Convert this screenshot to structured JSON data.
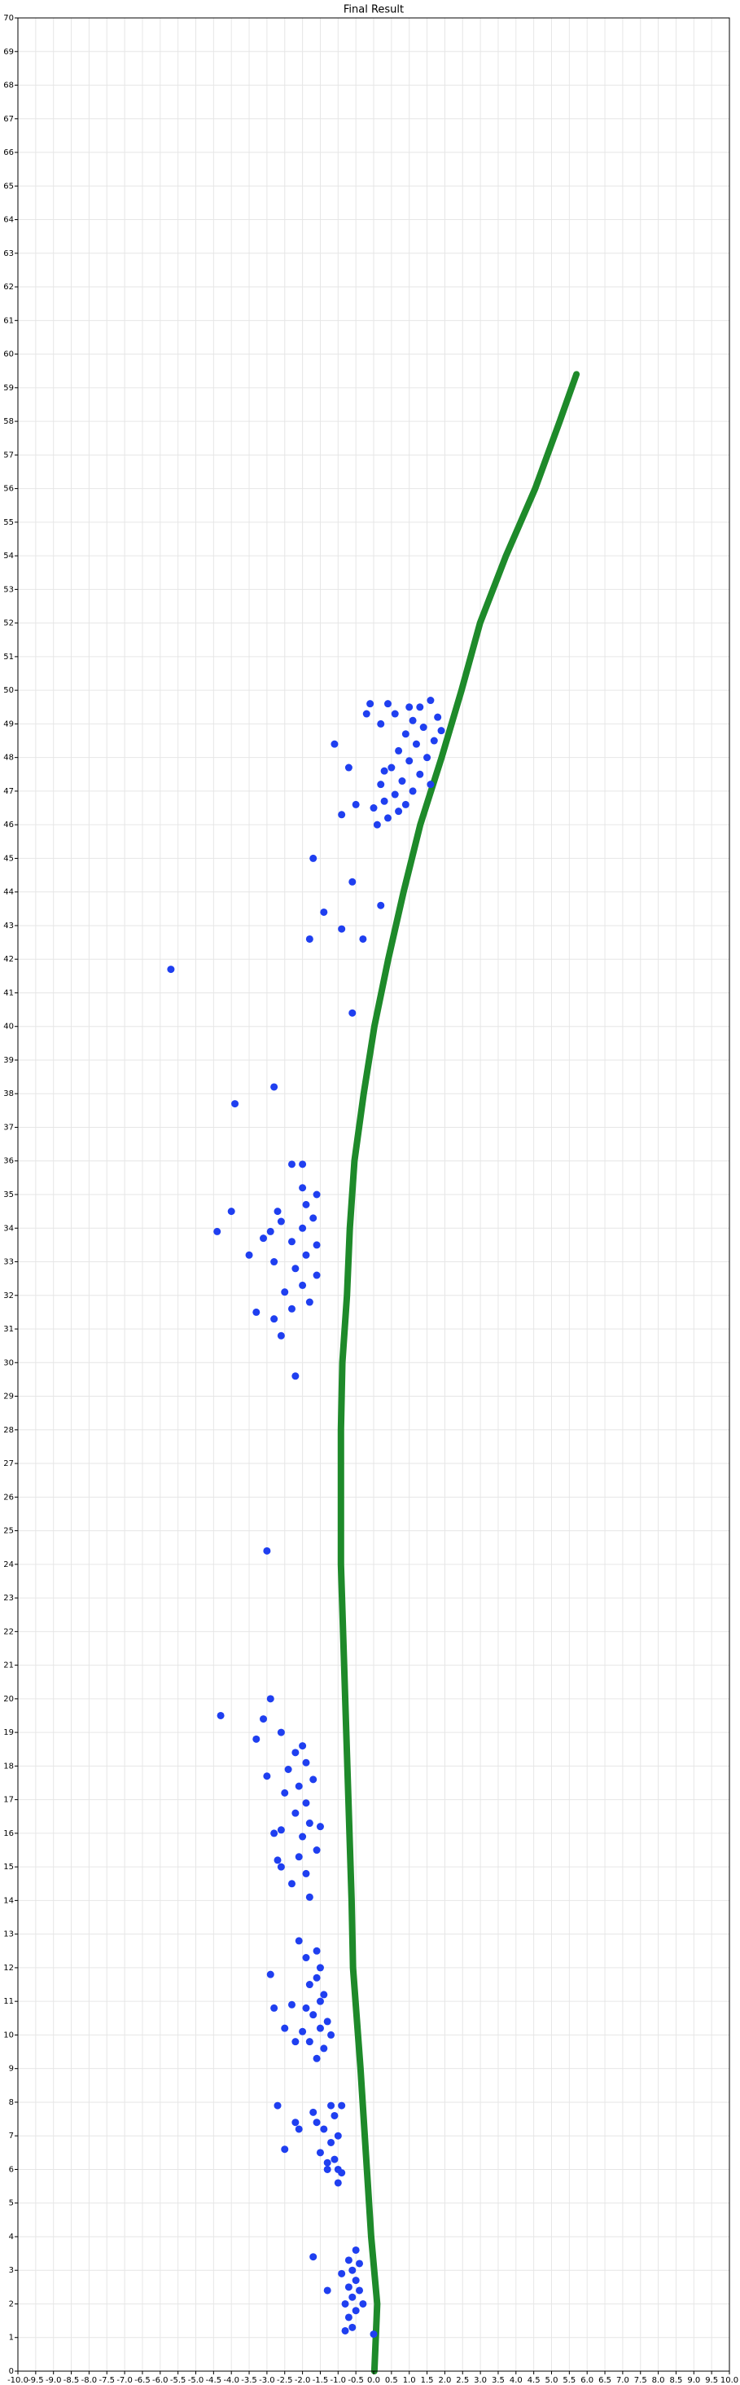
{
  "chart_data": {
    "type": "scatter",
    "title": "Final Result",
    "xlim": [
      -10,
      10
    ],
    "ylim": [
      0,
      70
    ],
    "grid": true,
    "xticks": [
      {
        "value": -10,
        "label": "-10.0"
      },
      -9.5,
      {
        "value": -9,
        "label": "-9.0"
      },
      -8.5,
      {
        "value": -8,
        "label": "-8.0"
      },
      -7.5,
      {
        "value": -7,
        "label": "-7.0"
      },
      -6.5,
      {
        "value": -6,
        "label": "-6.0"
      },
      -5.5,
      {
        "value": -5,
        "label": "-5.0"
      },
      -4.5,
      {
        "value": -4,
        "label": "-4.0"
      },
      -3.5,
      {
        "value": -3,
        "label": "-3.0"
      },
      -2.5,
      {
        "value": -2,
        "label": "-2.0"
      },
      -1.5,
      {
        "value": -1,
        "label": "-1.0"
      },
      -0.5,
      {
        "value": 0,
        "label": "0.0"
      },
      0.5,
      {
        "value": 1,
        "label": "1.0"
      },
      1.5,
      {
        "value": 2,
        "label": "2.0"
      },
      2.5,
      {
        "value": 3,
        "label": "3.0"
      },
      3.5,
      {
        "value": 4,
        "label": "4.0"
      },
      4.5,
      {
        "value": 5,
        "label": "5.0"
      },
      5.5,
      {
        "value": 6,
        "label": "6.0"
      },
      6.5,
      {
        "value": 7,
        "label": "7.0"
      },
      7.5,
      {
        "value": 8,
        "label": "8.0"
      },
      8.5,
      {
        "value": 9,
        "label": "9.0"
      },
      9.5,
      {
        "value": 10,
        "label": "10.0"
      }
    ],
    "yticks": [
      0,
      1,
      2,
      3,
      4,
      5,
      6,
      7,
      8,
      9,
      10,
      11,
      12,
      13,
      14,
      15,
      16,
      17,
      18,
      19,
      20,
      21,
      22,
      23,
      24,
      25,
      26,
      27,
      28,
      29,
      30,
      31,
      32,
      33,
      34,
      35,
      36,
      37,
      38,
      39,
      40,
      41,
      42,
      43,
      44,
      45,
      46,
      47,
      48,
      49,
      50,
      51,
      52,
      53,
      54,
      55,
      56,
      57,
      58,
      59,
      60,
      61,
      62,
      63,
      64,
      65,
      66,
      67,
      68,
      69,
      70
    ],
    "series": [
      {
        "style": "line",
        "color": "#1e8a2a",
        "x": [
          0.02,
          0.1,
          -0.07,
          -0.19,
          -0.37,
          -0.58,
          -0.62,
          -0.71,
          -0.8,
          -0.92,
          -0.92,
          -0.88,
          -0.75,
          -0.67,
          -0.54,
          -0.28,
          0.02,
          0.41,
          0.84,
          1.31,
          1.91,
          2.47,
          2.99,
          3.72,
          4.54,
          5.23,
          5.7
        ],
        "y": [
          0,
          2,
          4,
          6,
          9,
          12,
          14,
          17,
          20,
          24,
          28,
          30,
          32,
          34,
          36,
          38,
          40,
          42,
          44,
          46,
          48,
          50,
          52,
          54,
          56,
          58,
          59.4
        ]
      },
      {
        "style": "points",
        "color": "#1f3ff0",
        "x": [
          -0.8,
          -0.6,
          -0.7,
          -0.5,
          -0.8,
          -0.6,
          -0.4,
          -0.7,
          -0.5,
          -0.9,
          -0.6,
          -0.4,
          -0.7,
          -1.7,
          -0.5,
          -1.3,
          -0.3,
          0.0,
          -1.0,
          -0.9,
          -1.3,
          -1.1,
          -1.5,
          -1.2,
          -1.0,
          -1.4,
          -1.6,
          -1.1,
          -0.9,
          -1.2,
          -1.7,
          -1.3,
          -2.5,
          -2.7,
          -2.1,
          -2.2,
          -1.0,
          -1.6,
          -1.4,
          -1.8,
          -2.0,
          -1.5,
          -1.3,
          -1.7,
          -1.9,
          -1.5,
          -1.4,
          -1.8,
          -1.6,
          -1.5,
          -1.9,
          -1.6,
          -2.1,
          -2.5,
          -2.3,
          -2.9,
          -2.8,
          -1.2,
          -2.2,
          -1.8,
          -2.3,
          -1.9,
          -2.6,
          -2.1,
          -1.6,
          -2.0,
          -2.6,
          -1.8,
          -2.2,
          -1.9,
          -2.5,
          -2.1,
          -1.7,
          -2.4,
          -1.9,
          -2.2,
          -2.0,
          -2.6,
          -3.3,
          -3.0,
          -2.9,
          -3.1,
          -4.3,
          -2.8,
          -2.7,
          -1.5,
          -3.0,
          -2.2,
          -2.6,
          -2.8,
          -3.3,
          -2.3,
          -1.8,
          -2.5,
          -2.0,
          -1.6,
          -2.2,
          -2.8,
          -1.9,
          -3.5,
          -1.6,
          -2.3,
          -3.1,
          -4.4,
          -2.0,
          -1.7,
          -2.6,
          -4.0,
          -1.9,
          -1.6,
          -2.0,
          -2.3,
          -2.0,
          -2.7,
          -2.9,
          -3.9,
          -2.8,
          -0.6,
          -5.7,
          -1.8,
          -0.3,
          -0.9,
          -1.4,
          0.2,
          -0.6,
          -1.7,
          -1.1,
          -0.7,
          -0.9,
          -0.5,
          0.1,
          0.4,
          0.7,
          0.0,
          0.3,
          0.9,
          0.6,
          1.1,
          0.2,
          0.8,
          1.3,
          0.5,
          1.0,
          1.5,
          0.7,
          1.2,
          1.7,
          0.9,
          1.4,
          1.1,
          1.8,
          0.6,
          1.3,
          1.6,
          1.0,
          0.4,
          -0.1,
          -0.2,
          0.2,
          1.9,
          1.6,
          0.3
        ],
        "y": [
          1.2,
          1.3,
          1.6,
          1.8,
          2.0,
          2.2,
          2.4,
          2.5,
          2.7,
          2.9,
          3.0,
          3.2,
          3.3,
          3.4,
          3.6,
          2.4,
          2.0,
          1.1,
          5.6,
          5.9,
          6.0,
          6.3,
          6.5,
          6.8,
          7.0,
          7.2,
          7.4,
          7.6,
          7.9,
          7.9,
          7.7,
          6.2,
          6.6,
          7.9,
          7.2,
          7.4,
          6.0,
          9.3,
          9.6,
          9.8,
          10.1,
          10.2,
          10.4,
          10.6,
          10.8,
          11.0,
          11.2,
          11.5,
          11.7,
          12.0,
          12.3,
          12.5,
          12.8,
          10.2,
          10.9,
          11.8,
          10.8,
          10.0,
          9.8,
          14.1,
          14.5,
          14.8,
          15.0,
          15.3,
          15.5,
          15.9,
          16.1,
          16.3,
          16.6,
          16.9,
          17.2,
          17.4,
          17.6,
          17.9,
          18.1,
          18.4,
          18.6,
          19.0,
          18.8,
          17.7,
          20.0,
          19.4,
          19.5,
          16.0,
          15.2,
          16.2,
          24.4,
          29.6,
          30.8,
          31.3,
          31.5,
          31.6,
          31.8,
          32.1,
          32.3,
          32.6,
          32.8,
          33.0,
          33.2,
          33.2,
          33.5,
          33.6,
          33.7,
          33.9,
          34.0,
          34.3,
          34.2,
          34.5,
          34.7,
          35.0,
          35.2,
          35.9,
          35.9,
          34.5,
          33.9,
          37.7,
          38.2,
          40.4,
          41.7,
          42.6,
          42.6,
          42.9,
          43.4,
          43.6,
          44.3,
          45.0,
          48.4,
          47.7,
          46.3,
          46.6,
          46.0,
          46.2,
          46.4,
          46.5,
          46.7,
          46.6,
          46.9,
          47.0,
          47.2,
          47.3,
          47.5,
          47.7,
          47.9,
          48.0,
          48.2,
          48.4,
          48.5,
          48.7,
          48.9,
          49.1,
          49.2,
          49.3,
          49.5,
          49.7,
          49.5,
          49.6,
          49.6,
          49.3,
          49.0,
          48.8,
          47.2,
          47.6
        ]
      }
    ]
  }
}
